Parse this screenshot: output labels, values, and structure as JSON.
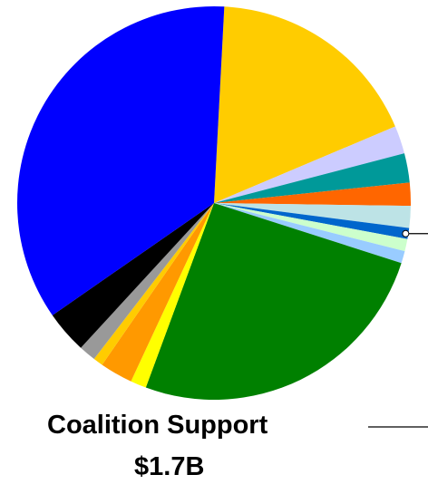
{
  "chart_data": {
    "type": "pie",
    "title": "",
    "start_angle_deg": 87,
    "direction": "clockwise",
    "slices": [
      {
        "value": 17.8,
        "color": "#FFCC00"
      },
      {
        "value": 2.3,
        "color": "#CCCCFF"
      },
      {
        "value": 2.4,
        "color": "#009999"
      },
      {
        "value": 1.9,
        "color": "#FF6600"
      },
      {
        "value": 1.8,
        "color": "#BDE3E6"
      },
      {
        "value": 0.9,
        "color": "#0066CC"
      },
      {
        "value": 1.0,
        "color": "#CCFFCC"
      },
      {
        "value": 1.0,
        "color": "#99CCFF"
      },
      {
        "value": 25.7,
        "color": "#008000"
      },
      {
        "value": 1.3,
        "color": "#FFFF00"
      },
      {
        "value": 2.7,
        "color": "#FF9900"
      },
      {
        "value": 0.8,
        "color": "#FFCC00"
      },
      {
        "value": 1.4,
        "color": "#999999"
      },
      {
        "value": 3.5,
        "color": "#000000"
      },
      {
        "value": 35.5,
        "color": "#0000FF"
      }
    ],
    "callout": {
      "line1": "Coalition Support",
      "line2": "$1.7B",
      "slice_index": 5
    }
  }
}
